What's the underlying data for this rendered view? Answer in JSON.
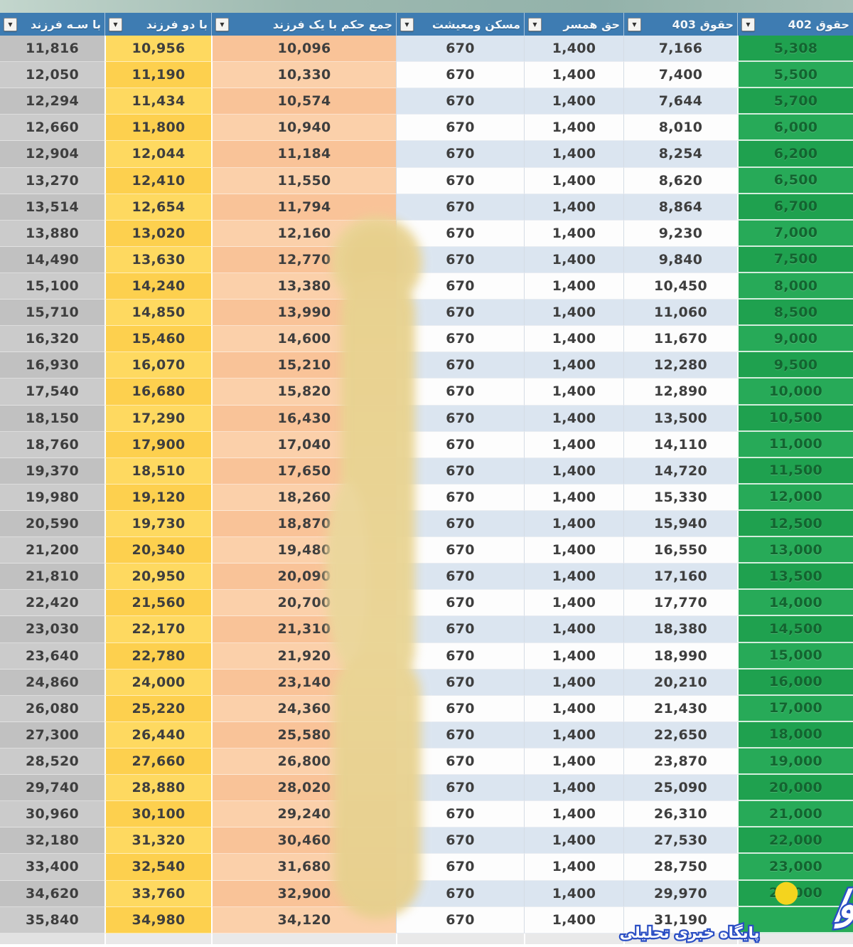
{
  "table": {
    "headers": [
      "با سـه فرزند",
      "با دو فرزند",
      "جمع حکم با یک فرزند",
      "مسکن ومعیشت",
      "حق همسر",
      "حقوق 403",
      "حقوق 402"
    ],
    "filter_icon": "▼",
    "rows": [
      [
        "11,816",
        "10,956",
        "10,096",
        "670",
        "1,400",
        "7,166",
        "5,308"
      ],
      [
        "12,050",
        "11,190",
        "10,330",
        "670",
        "1,400",
        "7,400",
        "5,500"
      ],
      [
        "12,294",
        "11,434",
        "10,574",
        "670",
        "1,400",
        "7,644",
        "5,700"
      ],
      [
        "12,660",
        "11,800",
        "10,940",
        "670",
        "1,400",
        "8,010",
        "6,000"
      ],
      [
        "12,904",
        "12,044",
        "11,184",
        "670",
        "1,400",
        "8,254",
        "6,200"
      ],
      [
        "13,270",
        "12,410",
        "11,550",
        "670",
        "1,400",
        "8,620",
        "6,500"
      ],
      [
        "13,514",
        "12,654",
        "11,794",
        "670",
        "1,400",
        "8,864",
        "6,700"
      ],
      [
        "13,880",
        "13,020",
        "12,160",
        "670",
        "1,400",
        "9,230",
        "7,000"
      ],
      [
        "14,490",
        "13,630",
        "12,770",
        "670",
        "1,400",
        "9,840",
        "7,500"
      ],
      [
        "15,100",
        "14,240",
        "13,380",
        "670",
        "1,400",
        "10,450",
        "8,000"
      ],
      [
        "15,710",
        "14,850",
        "13,990",
        "670",
        "1,400",
        "11,060",
        "8,500"
      ],
      [
        "16,320",
        "15,460",
        "14,600",
        "670",
        "1,400",
        "11,670",
        "9,000"
      ],
      [
        "16,930",
        "16,070",
        "15,210",
        "670",
        "1,400",
        "12,280",
        "9,500"
      ],
      [
        "17,540",
        "16,680",
        "15,820",
        "670",
        "1,400",
        "12,890",
        "10,000"
      ],
      [
        "18,150",
        "17,290",
        "16,430",
        "670",
        "1,400",
        "13,500",
        "10,500"
      ],
      [
        "18,760",
        "17,900",
        "17,040",
        "670",
        "1,400",
        "14,110",
        "11,000"
      ],
      [
        "19,370",
        "18,510",
        "17,650",
        "670",
        "1,400",
        "14,720",
        "11,500"
      ],
      [
        "19,980",
        "19,120",
        "18,260",
        "670",
        "1,400",
        "15,330",
        "12,000"
      ],
      [
        "20,590",
        "19,730",
        "18,870",
        "670",
        "1,400",
        "15,940",
        "12,500"
      ],
      [
        "21,200",
        "20,340",
        "19,480",
        "670",
        "1,400",
        "16,550",
        "13,000"
      ],
      [
        "21,810",
        "20,950",
        "20,090",
        "670",
        "1,400",
        "17,160",
        "13,500"
      ],
      [
        "22,420",
        "21,560",
        "20,700",
        "670",
        "1,400",
        "17,770",
        "14,000"
      ],
      [
        "23,030",
        "22,170",
        "21,310",
        "670",
        "1,400",
        "18,380",
        "14,500"
      ],
      [
        "23,640",
        "22,780",
        "21,920",
        "670",
        "1,400",
        "18,990",
        "15,000"
      ],
      [
        "24,860",
        "24,000",
        "23,140",
        "670",
        "1,400",
        "20,210",
        "16,000"
      ],
      [
        "26,080",
        "25,220",
        "24,360",
        "670",
        "1,400",
        "21,430",
        "17,000"
      ],
      [
        "27,300",
        "26,440",
        "25,580",
        "670",
        "1,400",
        "22,650",
        "18,000"
      ],
      [
        "28,520",
        "27,660",
        "26,800",
        "670",
        "1,400",
        "23,870",
        "19,000"
      ],
      [
        "29,740",
        "28,880",
        "28,020",
        "670",
        "1,400",
        "25,090",
        "20,000"
      ],
      [
        "30,960",
        "30,100",
        "29,240",
        "670",
        "1,400",
        "26,310",
        "21,000"
      ],
      [
        "32,180",
        "31,320",
        "30,460",
        "670",
        "1,400",
        "27,530",
        "22,000"
      ],
      [
        "33,400",
        "32,540",
        "31,680",
        "670",
        "1,400",
        "28,750",
        "23,000"
      ],
      [
        "34,620",
        "33,760",
        "32,900",
        "670",
        "1,400",
        "29,970",
        "24,000"
      ],
      [
        "35,840",
        "34,980",
        "34,120",
        "670",
        "1,400",
        "31,190",
        ""
      ]
    ]
  },
  "watermark": {
    "brand": "روزنو",
    "slash": "/",
    "tagline": "پایگاه خبری تحلیلی"
  },
  "colors": {
    "header_blue": "#3e7cb2",
    "green_column": "#22a553",
    "yellow_column": "#fdd455",
    "salmon_column": "#fac79e",
    "gray_column": "#c5c5c5",
    "stripe_blue": "#dbe5f0",
    "logo_blue": "#2b4fc4",
    "logo_yellow": "#f4d41e",
    "smudge_tan": "#e9d494"
  }
}
